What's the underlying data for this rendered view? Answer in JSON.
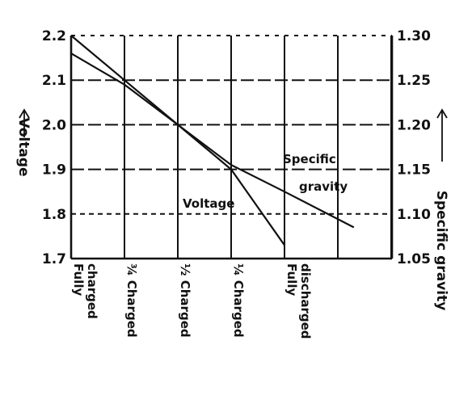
{
  "chart_data": {
    "type": "line",
    "categories": [
      "Fully charged",
      "¾ Charged",
      "½ Charged",
      "¼ Charged",
      "Fully discharged"
    ],
    "category_lines": [
      [
        "Fully",
        "charged"
      ],
      [
        "¾ Charged"
      ],
      [
        "½ Charged"
      ],
      [
        "¼ Charged"
      ],
      [
        "Fully",
        "discharged"
      ]
    ],
    "ylabel_left": "Voltage",
    "ylabel_right": "Specific gravity",
    "left_axis": {
      "ticks": [
        "1.7",
        "1.8",
        "1.9",
        "2.0",
        "2.1",
        "2.2"
      ],
      "ylim": [
        1.7,
        2.2
      ]
    },
    "right_axis": {
      "ticks": [
        "1.05",
        "1.10",
        "1.15",
        "1.20",
        "1.25",
        "1.30"
      ],
      "ylim": [
        1.05,
        1.3
      ]
    },
    "grid": true,
    "series": [
      {
        "name": "Voltage",
        "axis": "left",
        "x": [
          0,
          1,
          2,
          3,
          4
        ],
        "values": [
          2.2,
          2.1,
          2.0,
          1.9,
          1.73
        ]
      },
      {
        "name": "Specific gravity",
        "axis": "right",
        "x": [
          0,
          1,
          2,
          3,
          4,
          5.3
        ],
        "values": [
          1.28,
          1.245,
          1.2,
          1.155,
          1.125,
          1.085
        ]
      }
    ]
  }
}
